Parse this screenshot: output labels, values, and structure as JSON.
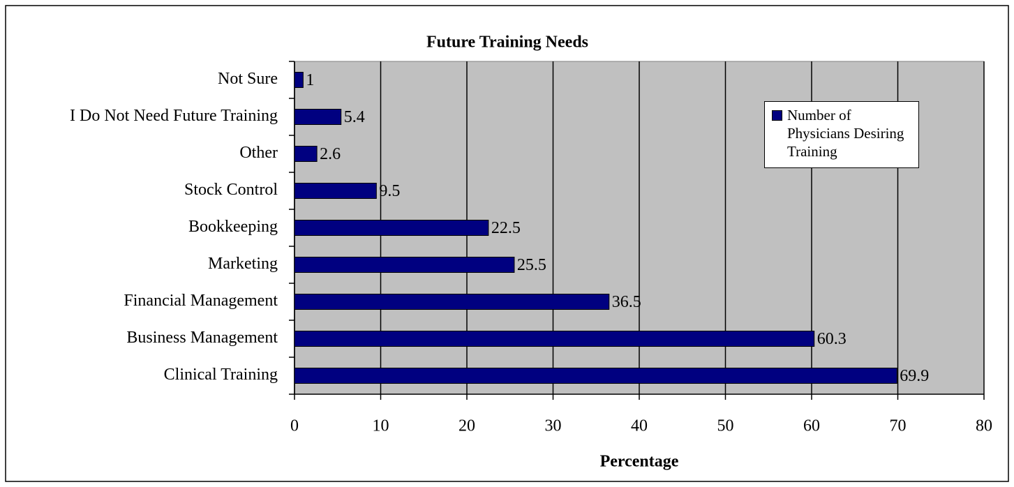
{
  "chart_data": {
    "type": "hbar",
    "title": "Future Training Needs",
    "x_label": "Percentage",
    "categories": [
      "Not Sure",
      "I Do Not Need Future Training",
      "Other",
      "Stock Control",
      "Bookkeeping",
      "Marketing",
      "Financial Management",
      "Business Management",
      "Clinical Training"
    ],
    "series": [
      {
        "name": "Number of Physicians Desiring Training",
        "color": "#000080",
        "values": [
          1,
          5.4,
          2.6,
          9.5,
          22.5,
          25.5,
          36.5,
          60.3,
          69.9
        ]
      }
    ],
    "xlim": [
      0,
      80
    ],
    "xticks": [
      0,
      10,
      20,
      30,
      40,
      50,
      60,
      70,
      80
    ],
    "grid": true,
    "legend": "upper right"
  }
}
